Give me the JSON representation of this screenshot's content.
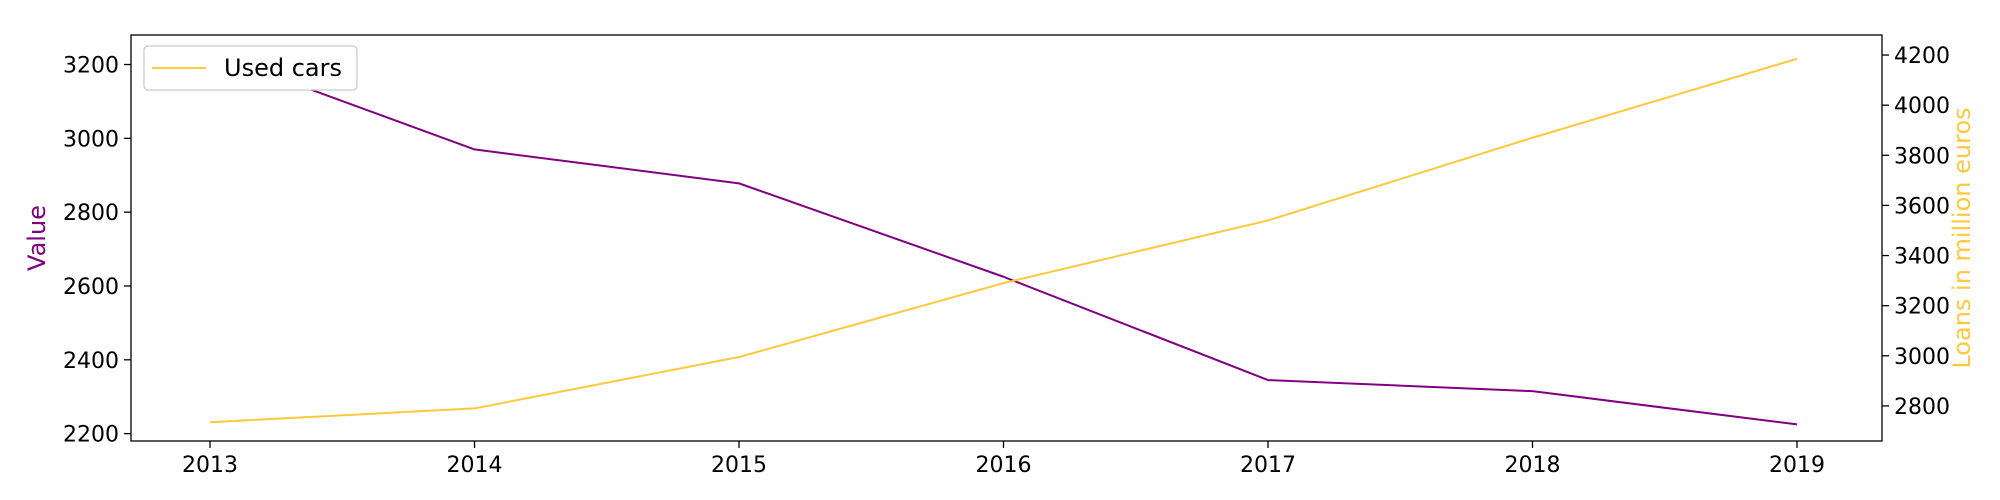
{
  "chart_data": {
    "type": "line",
    "title": "",
    "xlabel": "",
    "x": [
      "2013",
      "2014",
      "2015",
      "2016",
      "2017",
      "2018",
      "2019"
    ],
    "y_left": {
      "label": "Value",
      "color": "#800080",
      "ylim": [
        2180,
        3280
      ],
      "ticks": [
        2200,
        2400,
        2600,
        2800,
        3000,
        3200
      ]
    },
    "y_right": {
      "label": "Loans in million euros",
      "color": "#ffc83d",
      "ylim": [
        2660,
        4280
      ],
      "ticks": [
        2800,
        3000,
        3200,
        3400,
        3600,
        3800,
        4000,
        4200
      ]
    },
    "series": [
      {
        "axis": "left",
        "color": "#800080",
        "values": [
          3232,
          2970,
          2878,
          2625,
          2345,
          2315,
          2225
        ]
      },
      {
        "name": "Used cars",
        "axis": "right",
        "color": "#ffc83d",
        "values": [
          2735,
          2790,
          2995,
          3290,
          3540,
          3870,
          4185
        ]
      }
    ],
    "legend": {
      "position": "top-left",
      "entries": [
        "Used cars"
      ]
    },
    "grid": false
  }
}
